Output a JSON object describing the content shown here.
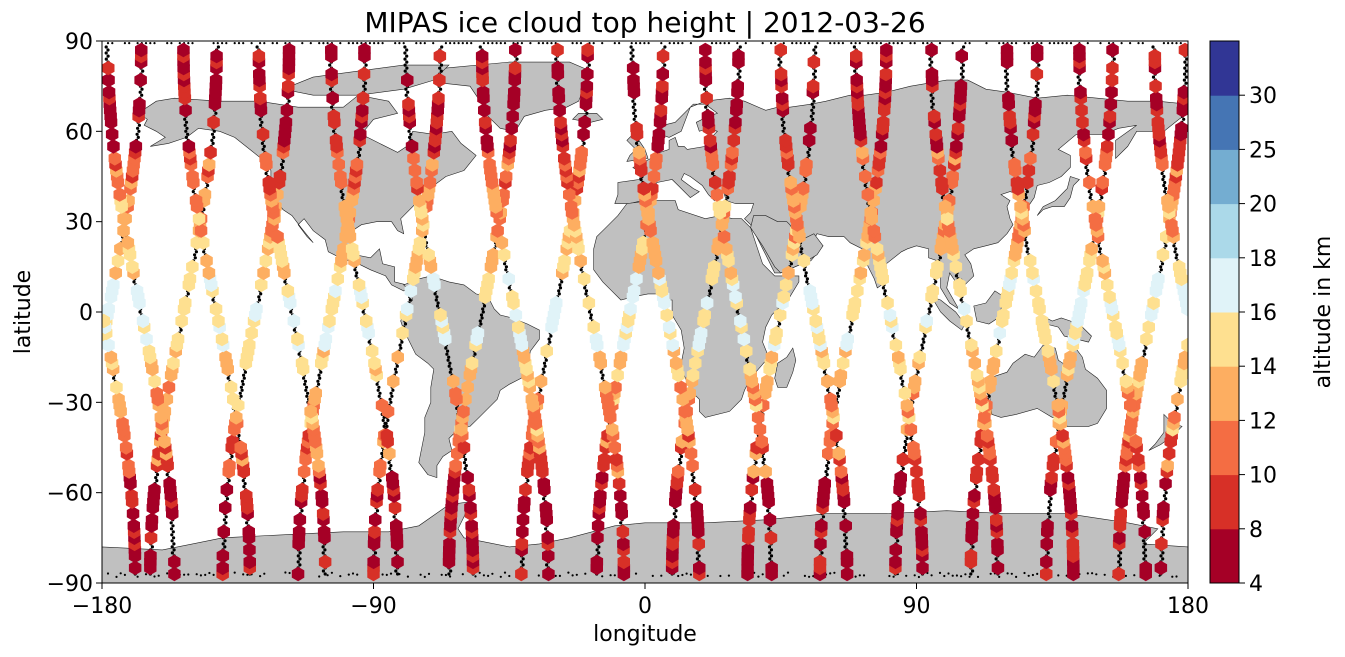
{
  "chart_data": {
    "type": "scatter",
    "title": "MIPAS ice cloud top height | 2012-03-26",
    "xlabel": "longitude",
    "ylabel": "latitude",
    "xlim": [
      -180,
      180
    ],
    "ylim": [
      -90,
      90
    ],
    "xticks": [
      "−180",
      "−90",
      "0",
      "90",
      "180"
    ],
    "yticks": [
      "90",
      "60",
      "30",
      "0",
      "−30",
      "−60",
      "−90"
    ],
    "grid": false,
    "marker": "hexagon",
    "colorbar": {
      "label": "altitude in km",
      "boundaries": [
        4,
        8,
        10,
        12,
        14,
        16,
        18,
        20,
        25,
        30
      ],
      "tick_labels": [
        "4",
        "8",
        "10",
        "12",
        "14",
        "16",
        "18",
        "20",
        "25",
        "30"
      ],
      "colors": [
        "#a50026",
        "#d73027",
        "#f46d43",
        "#fdae61",
        "#fee090",
        "#e0f3f8",
        "#abd9e9",
        "#74add1",
        "#4575b4",
        "#313695"
      ]
    },
    "tracks": {
      "description_units": "longitude of each orbit track at the equator (degrees)",
      "ascending_equator_lon": [
        -178,
        -153,
        -129,
        -104,
        -79,
        -54,
        -30,
        -5,
        20,
        45,
        69,
        94,
        119,
        144,
        168
      ],
      "descending_equator_lon": [
        -167,
        -142,
        -117,
        -93,
        -68,
        -43,
        -18,
        7,
        31,
        56,
        81,
        106,
        131,
        155,
        180
      ],
      "max_lat": 87,
      "max_lat_lon_offset_deg": 11
    },
    "missing_profile_color": "#000000",
    "land_color": "#c0c0c0",
    "ocean_color": "#ffffff"
  }
}
